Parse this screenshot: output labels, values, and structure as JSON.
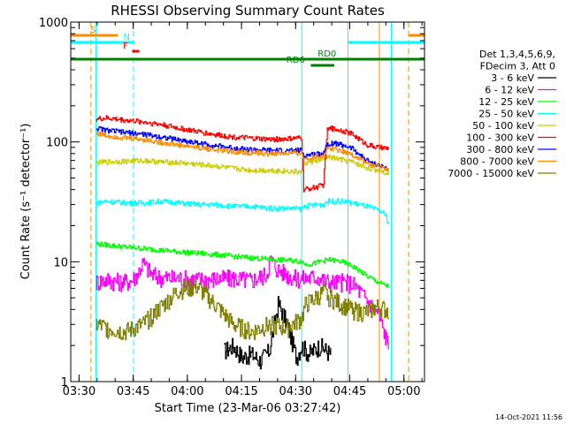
{
  "chart_data": {
    "type": "line",
    "title": "RHESSI Observing Summary Count Rates",
    "xlabel": "Start Time (23-Mar-06 03:27:42)",
    "ylabel": "Count Rate (s⁻¹ detector⁻¹)",
    "x_unit": "minutes since 03:27:42",
    "xlim": [
      0,
      98
    ],
    "ylim": [
      1,
      1000
    ],
    "yscale": "log",
    "x_ticks": [
      {
        "label": "03:30",
        "value": 2.3
      },
      {
        "label": "03:45",
        "value": 17.3
      },
      {
        "label": "04:00",
        "value": 32.3
      },
      {
        "label": "04:15",
        "value": 47.3
      },
      {
        "label": "04:30",
        "value": 62.3
      },
      {
        "label": "04:45",
        "value": 77.3
      },
      {
        "label": "05:00",
        "value": 92.3
      }
    ],
    "y_ticks": [
      {
        "label": "1",
        "value": 1
      },
      {
        "label": "10",
        "value": 10
      },
      {
        "label": "100",
        "value": 100
      },
      {
        "label": "1000",
        "value": 1000
      }
    ],
    "legend": {
      "placement": "right",
      "header": [
        "Det 1,3,4,5,6,9,",
        "FDecim 3, Att 0"
      ]
    },
    "series": [
      {
        "name": "3 - 6 keV",
        "color": "#000000",
        "x": [
          42.5,
          45,
          47.5,
          50,
          52.5,
          55,
          57.5,
          60,
          62.5,
          64,
          66,
          69,
          72
        ],
        "y": [
          1.8,
          2.0,
          1.6,
          1.7,
          1.5,
          1.8,
          4.5,
          3.0,
          1.6,
          2.0,
          1.7,
          2.0,
          1.7
        ]
      },
      {
        "name": "6 - 12 keV",
        "color": "#ff00ff",
        "x": [
          7,
          10,
          12,
          15,
          17,
          18.5,
          20,
          22.5,
          25,
          30,
          35,
          40,
          45,
          50,
          54,
          55.5,
          57,
          60,
          62.5,
          65,
          68,
          70,
          72,
          75,
          78,
          80,
          82,
          85,
          88
        ],
        "y": [
          6.8,
          7.1,
          6.9,
          6.8,
          7.0,
          8.0,
          9.8,
          7.8,
          7.4,
          7.3,
          7.1,
          7.2,
          7.3,
          7.0,
          7.8,
          10.5,
          8.8,
          7.8,
          7.2,
          7.3,
          7.5,
          7.0,
          6.7,
          6.8,
          6.6,
          5.7,
          4.8,
          3.8,
          2.0
        ]
      },
      {
        "name": "12 - 25 keV",
        "color": "#00ff00",
        "x": [
          7,
          10,
          15,
          20,
          25,
          30,
          35,
          40,
          45,
          50,
          55,
          60,
          64,
          65,
          68,
          70,
          72,
          75,
          78,
          80,
          82,
          85,
          88
        ],
        "y": [
          14.2,
          13.8,
          13.3,
          12.9,
          12.5,
          12.1,
          11.8,
          11.5,
          11.1,
          10.8,
          10.5,
          10.3,
          10.1,
          9.5,
          9.8,
          10.2,
          10.4,
          10.0,
          9.2,
          8.4,
          7.6,
          6.8,
          6.2
        ]
      },
      {
        "name": "25 - 50 keV",
        "color": "#00ffff",
        "x": [
          7,
          10,
          15,
          20,
          25,
          30,
          35,
          40,
          45,
          50,
          55,
          60,
          64,
          64.5,
          68,
          70,
          71,
          72,
          75,
          78,
          80,
          82,
          85,
          87,
          88
        ],
        "y": [
          31,
          32,
          31,
          31,
          32,
          31,
          30,
          30,
          29,
          29,
          28,
          28,
          27.5,
          29,
          30,
          30,
          32,
          32,
          32,
          31,
          30,
          29,
          27,
          25,
          21
        ]
      },
      {
        "name": "50 - 100 keV",
        "color": "#cccc00",
        "x": [
          7,
          10,
          15,
          20,
          25,
          30,
          35,
          40,
          45,
          50,
          55,
          60,
          64,
          64.5,
          68,
          70,
          71,
          72,
          75,
          78,
          80,
          82,
          85,
          88
        ],
        "y": [
          67,
          68,
          69,
          70,
          68,
          67,
          65,
          63,
          60,
          58,
          58,
          57,
          56,
          66,
          70,
          71,
          75,
          74,
          71,
          68,
          64,
          61,
          58,
          55
        ]
      },
      {
        "name": "100 - 300 keV",
        "color": "#ff0000",
        "x": [
          7,
          10,
          15,
          20,
          25,
          30,
          35,
          40,
          45,
          50,
          55,
          60,
          64,
          64.5,
          68,
          70,
          71,
          72,
          75,
          78,
          80,
          82,
          85,
          88
        ],
        "y": [
          155,
          158,
          152,
          147,
          140,
          130,
          122,
          115,
          110,
          107,
          105,
          106,
          108,
          40,
          42,
          44,
          125,
          130,
          125,
          116,
          105,
          95,
          90,
          88
        ]
      },
      {
        "name": "300 - 800 keV",
        "color": "#0000ff",
        "x": [
          7,
          10,
          15,
          20,
          25,
          30,
          35,
          40,
          45,
          50,
          55,
          60,
          64,
          64.5,
          68,
          70,
          71,
          72,
          75,
          78,
          80,
          82,
          85,
          88
        ],
        "y": [
          130,
          125,
          120,
          116,
          110,
          104,
          98,
          93,
          89,
          86,
          85,
          84,
          85,
          76,
          80,
          81,
          96,
          98,
          95,
          88,
          78,
          70,
          64,
          59
        ]
      },
      {
        "name": "800 - 7000 keV",
        "color": "#ff8c00",
        "x": [
          7,
          10,
          15,
          20,
          25,
          30,
          35,
          40,
          45,
          50,
          55,
          60,
          64,
          64.5,
          68,
          70,
          71,
          72,
          75,
          78,
          80,
          82,
          85,
          88
        ],
        "y": [
          118,
          113,
          108,
          105,
          99,
          94,
          90,
          86,
          83,
          81,
          80,
          80,
          81,
          72,
          76,
          77,
          88,
          89,
          85,
          78,
          72,
          66,
          62,
          59
        ]
      },
      {
        "name": "7000 - 15000 keV",
        "color": "#808000",
        "x": [
          7,
          10,
          15,
          20,
          25,
          30,
          35,
          40,
          45,
          50,
          55,
          60,
          64,
          65,
          68,
          70,
          72,
          75,
          78,
          80,
          82,
          85,
          88
        ],
        "y": [
          3.0,
          2.8,
          2.6,
          3.0,
          4.2,
          5.8,
          6.2,
          4.4,
          3.0,
          2.6,
          3.0,
          2.8,
          3.4,
          4.4,
          5.0,
          5.6,
          5.0,
          4.4,
          4.0,
          3.8,
          3.8,
          4.2,
          3.9
        ]
      }
    ],
    "vertical_lines": [
      {
        "x": 5.6,
        "color": "#ff8c00",
        "style": "dashed"
      },
      {
        "x": 7.0,
        "color": "#00ffff",
        "style": "solid"
      },
      {
        "x": 17.4,
        "color": "#00ffff",
        "style": "dashed"
      },
      {
        "x": 64.0,
        "color": "#00ffff",
        "style": "solid"
      },
      {
        "x": 76.8,
        "color": "#00ffff",
        "style": "solid"
      },
      {
        "x": 85.5,
        "color": "#ff8c00",
        "style": "solid"
      },
      {
        "x": 88.8,
        "color": "#00ffff",
        "style": "solid"
      },
      {
        "x": 93.6,
        "color": "#ff8c00",
        "style": "dashed"
      }
    ],
    "status_bars": [
      {
        "label": "S",
        "color": "#ff8c00",
        "x": [
          0,
          13
        ],
        "label_x": 6.2,
        "row": 1
      },
      {
        "label": "",
        "color": "#ff8c00",
        "x": [
          93.5,
          98
        ],
        "label_x": null,
        "row": 1
      },
      {
        "label": "N",
        "color": "#00ffff",
        "x": [
          0,
          17.6
        ],
        "label_x": 15.5,
        "row": 2
      },
      {
        "label": "",
        "color": "#00ffff",
        "x": [
          76.8,
          98
        ],
        "label_x": null,
        "row": 2
      },
      {
        "label": "F",
        "color": "#ff0000",
        "x": [
          17,
          19
        ],
        "label_x": 15.2,
        "row": 3
      },
      {
        "label": "RD0",
        "color": "#008000",
        "x": [
          0,
          98
        ],
        "label_x": 71.0,
        "row": 4
      },
      {
        "label": "RD6",
        "color": "#008000",
        "x": [
          66.5,
          73
        ],
        "label_x": 62.3,
        "row": 5
      }
    ],
    "grid": false
  },
  "footer": {
    "timestamp": "14-Oct-2021 11:56"
  }
}
